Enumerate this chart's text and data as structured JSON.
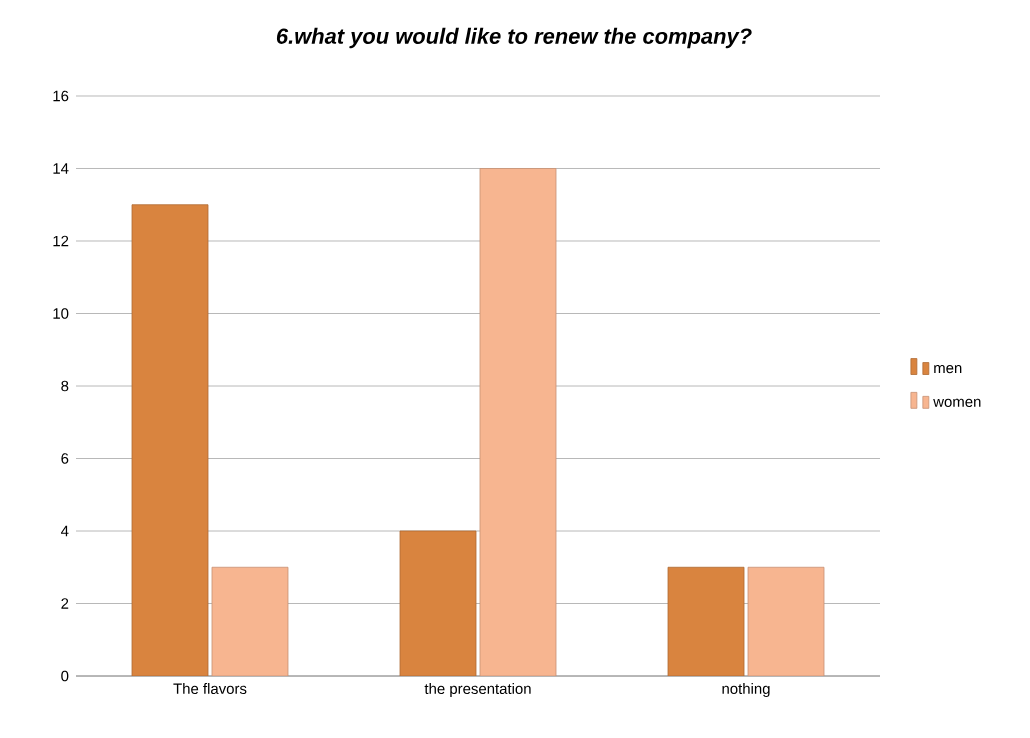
{
  "chart_data": {
    "type": "bar",
    "title": "6.what  you would like to renew the company?",
    "categories": [
      "The flavors",
      "the presentation",
      "nothing"
    ],
    "series": [
      {
        "name": "men",
        "color": "#d9843f",
        "values": [
          13,
          4,
          3
        ]
      },
      {
        "name": "women",
        "color": "#f7b590",
        "values": [
          3,
          14,
          3
        ]
      }
    ],
    "ylim": [
      0,
      16
    ],
    "yticks": [
      0,
      2,
      4,
      6,
      8,
      10,
      12,
      14,
      16
    ],
    "grid": "y",
    "legend": "right"
  }
}
